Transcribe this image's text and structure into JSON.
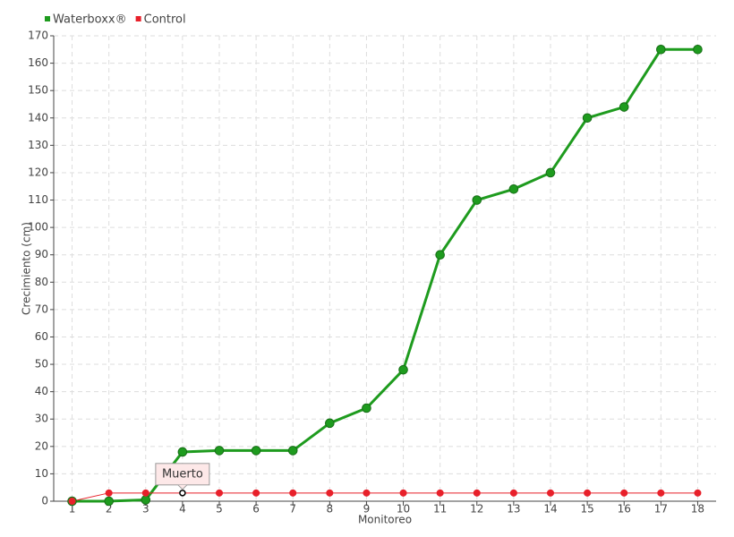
{
  "chart_data": {
    "type": "line",
    "x_label": "Monitoreo",
    "y_label": "Crecimiento (cm)",
    "categories": [
      "1",
      "2",
      "3",
      "4",
      "5",
      "6",
      "7",
      "8",
      "9",
      "10",
      "11",
      "12",
      "13",
      "14",
      "15",
      "16",
      "17",
      "18"
    ],
    "series": [
      {
        "name": "Waterboxx®",
        "color": "#1e9b1e",
        "values": [
          0,
          0,
          0.5,
          18,
          18.5,
          18.5,
          18.5,
          28.5,
          34,
          48,
          90,
          110,
          114,
          120,
          140,
          144,
          165,
          165
        ]
      },
      {
        "name": "Control",
        "color": "#e8202a",
        "values": [
          0,
          3,
          3,
          3,
          3,
          3,
          3,
          3,
          3,
          3,
          3,
          3,
          3,
          3,
          3,
          3,
          3,
          3
        ]
      }
    ],
    "annotation": {
      "text": "Muerto",
      "series": "Control",
      "category": "4"
    },
    "ylim": [
      0,
      170
    ],
    "yticks": [
      0,
      10,
      20,
      30,
      40,
      50,
      60,
      70,
      80,
      90,
      100,
      110,
      120,
      130,
      140,
      150,
      160,
      170
    ],
    "grid": true,
    "legend": "top-left"
  }
}
